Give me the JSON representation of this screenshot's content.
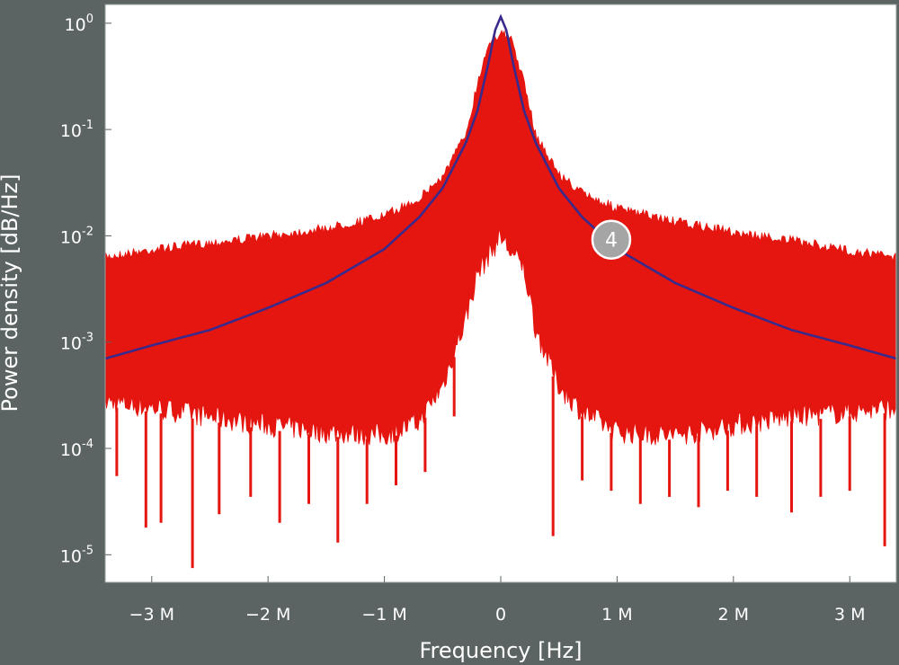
{
  "chart_data": {
    "type": "line",
    "title": "",
    "xlabel": "Frequency [Hz]",
    "ylabel": "Power density [dB/Hz]",
    "x_scale": "linear",
    "y_scale": "log",
    "xlim": [
      -3400000,
      3400000
    ],
    "ylim": [
      5.5e-06,
      1.5
    ],
    "x_ticks": [
      {
        "value": -3000000,
        "label": "−3 M"
      },
      {
        "value": -2000000,
        "label": "−2 M"
      },
      {
        "value": -1000000,
        "label": "−1 M"
      },
      {
        "value": 0,
        "label": "0"
      },
      {
        "value": 1000000,
        "label": "1 M"
      },
      {
        "value": 2000000,
        "label": "2 M"
      },
      {
        "value": 3000000,
        "label": "3 M"
      }
    ],
    "y_ticks": [
      {
        "value": 1,
        "base": "10",
        "exp": "0"
      },
      {
        "value": 0.1,
        "base": "10",
        "exp": "-1"
      },
      {
        "value": 0.01,
        "base": "10",
        "exp": "-2"
      },
      {
        "value": 0.001,
        "base": "10",
        "exp": "-3"
      },
      {
        "value": 0.0001,
        "base": "10",
        "exp": "-4"
      },
      {
        "value": 1e-05,
        "base": "10",
        "exp": "-5"
      }
    ],
    "grid": false,
    "legend": "none",
    "series": [
      {
        "kind": "noisy-band",
        "color": "#e5150f",
        "x": [
          -3400000,
          -3000000,
          -2500000,
          -2000000,
          -1500000,
          -1000000,
          -700000,
          -500000,
          -300000,
          -200000,
          -100000,
          0,
          100000,
          200000,
          300000,
          500000,
          700000,
          1000000,
          1500000,
          2000000,
          2500000,
          3000000,
          3400000
        ],
        "upper": [
          0.007,
          0.0082,
          0.0095,
          0.011,
          0.013,
          0.017,
          0.025,
          0.04,
          0.1,
          0.3,
          0.75,
          0.9,
          0.75,
          0.3,
          0.1,
          0.042,
          0.028,
          0.02,
          0.015,
          0.012,
          0.01,
          0.008,
          0.007
        ],
        "lower": [
          0.00025,
          0.00022,
          0.00018,
          0.00015,
          0.00013,
          0.00012,
          0.00016,
          0.00035,
          0.0015,
          0.004,
          0.006,
          0.009,
          0.006,
          0.0045,
          0.0012,
          0.00035,
          0.0002,
          0.00013,
          0.00012,
          0.00015,
          0.00018,
          0.0002,
          0.00022
        ],
        "spikes": [
          {
            "x": -3300000,
            "y": 5.5e-05
          },
          {
            "x": -3050000,
            "y": 1.8e-05
          },
          {
            "x": -2920000,
            "y": 2e-05
          },
          {
            "x": -2650000,
            "y": 7.5e-06
          },
          {
            "x": -2420000,
            "y": 2.4e-05
          },
          {
            "x": -2150000,
            "y": 3.5e-05
          },
          {
            "x": -1900000,
            "y": 2e-05
          },
          {
            "x": -1650000,
            "y": 3e-05
          },
          {
            "x": -1400000,
            "y": 1.3e-05
          },
          {
            "x": -1150000,
            "y": 3e-05
          },
          {
            "x": -900000,
            "y": 4.5e-05
          },
          {
            "x": -650000,
            "y": 6e-05
          },
          {
            "x": -400000,
            "y": 0.0002
          },
          {
            "x": 450000,
            "y": 1.5e-05
          },
          {
            "x": 700000,
            "y": 5e-05
          },
          {
            "x": 950000,
            "y": 4e-05
          },
          {
            "x": 1200000,
            "y": 3e-05
          },
          {
            "x": 1450000,
            "y": 3.5e-05
          },
          {
            "x": 1700000,
            "y": 2.8e-05
          },
          {
            "x": 1950000,
            "y": 4e-05
          },
          {
            "x": 2200000,
            "y": 3.5e-05
          },
          {
            "x": 2500000,
            "y": 2.5e-05
          },
          {
            "x": 2750000,
            "y": 3.5e-05
          },
          {
            "x": 3000000,
            "y": 4e-05
          },
          {
            "x": 3300000,
            "y": 1.2e-05
          }
        ]
      },
      {
        "kind": "curve",
        "color": "#3a2a8c",
        "x": [
          -3400000,
          -3000000,
          -2500000,
          -2000000,
          -1500000,
          -1000000,
          -700000,
          -500000,
          -300000,
          -200000,
          -100000,
          -50000,
          0,
          50000,
          100000,
          200000,
          300000,
          500000,
          700000,
          1000000,
          1500000,
          2000000,
          2500000,
          3000000,
          3400000
        ],
        "y": [
          0.0007,
          0.00093,
          0.0013,
          0.0021,
          0.0036,
          0.0075,
          0.015,
          0.028,
          0.075,
          0.15,
          0.45,
          0.85,
          1.15,
          0.85,
          0.45,
          0.15,
          0.075,
          0.028,
          0.015,
          0.0075,
          0.0036,
          0.0021,
          0.0013,
          0.00093,
          0.0007
        ]
      }
    ],
    "annotations": [
      {
        "label": "4",
        "x": 950000,
        "y": 0.0092,
        "color": "#a5a5a5"
      }
    ]
  }
}
